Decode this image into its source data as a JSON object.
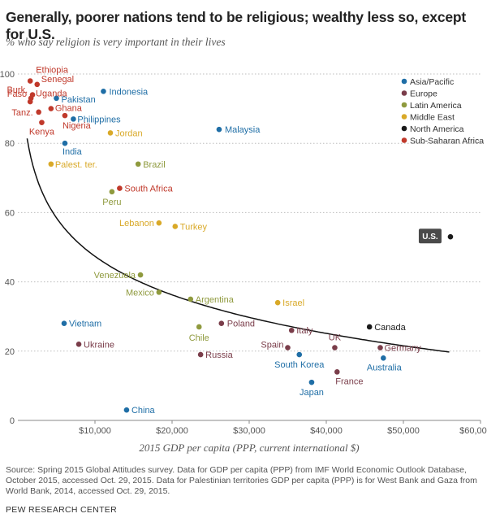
{
  "header": {
    "title": "Generally, poorer nations tend to be religious; wealthy less so, except for U.S.",
    "subtitle": "% who say religion is very important in their lives"
  },
  "footer": {
    "note": "Source: Spring 2015 Global Attitudes survey. Data for GDP per capita (PPP) from IMF World Economic Outlook Database, October 2015, accessed Oct. 29, 2015. Data for Palestinian territories GDP per capita (PPP) is for West Bank and Gaza from World Bank, 2014, accessed Oct. 29, 2015.",
    "brand": "PEW RESEARCH CENTER"
  },
  "chart_data": {
    "type": "scatter",
    "xlabel": "2015 GDP per capita (PPP, current international $)",
    "ylabel": "",
    "xlim": [
      0,
      60000
    ],
    "ylim": [
      0,
      100
    ],
    "x_ticks": [
      10000,
      20000,
      30000,
      40000,
      50000,
      60000
    ],
    "x_tick_labels": [
      "$10,000",
      "$20,000",
      "$30,000",
      "$40,000",
      "$50,000",
      "$60,000"
    ],
    "y_ticks": [
      0,
      20,
      40,
      60,
      80,
      100
    ],
    "y_tick_labels": [
      "0",
      "20",
      "40",
      "60",
      "80",
      "100"
    ],
    "grid": "horizontal dotted",
    "legend_position": "top-right",
    "series": [
      {
        "name": "Asia/Pacific",
        "color": "#1f6ea6",
        "points": [
          {
            "label": "Indonesia",
            "x": 11100,
            "y": 95
          },
          {
            "label": "Pakistan",
            "x": 5000,
            "y": 93
          },
          {
            "label": "Philippines",
            "x": 7200,
            "y": 87
          },
          {
            "label": "India",
            "x": 6100,
            "y": 80
          },
          {
            "label": "Malaysia",
            "x": 26100,
            "y": 84
          },
          {
            "label": "Vietnam",
            "x": 6000,
            "y": 28
          },
          {
            "label": "South Korea",
            "x": 36500,
            "y": 19
          },
          {
            "label": "Australia",
            "x": 47400,
            "y": 18
          },
          {
            "label": "Japan",
            "x": 38100,
            "y": 11
          },
          {
            "label": "China",
            "x": 14100,
            "y": 3
          }
        ]
      },
      {
        "name": "Europe",
        "color": "#7a3d4a",
        "points": [
          {
            "label": "Poland",
            "x": 26400,
            "y": 28
          },
          {
            "label": "Italy",
            "x": 35500,
            "y": 26
          },
          {
            "label": "Spain",
            "x": 35000,
            "y": 21
          },
          {
            "label": "UK",
            "x": 41100,
            "y": 21
          },
          {
            "label": "Germany",
            "x": 47000,
            "y": 21
          },
          {
            "label": "France",
            "x": 41400,
            "y": 14
          },
          {
            "label": "Ukraine",
            "x": 7900,
            "y": 22
          },
          {
            "label": "Russia",
            "x": 23700,
            "y": 19
          }
        ]
      },
      {
        "name": "Latin America",
        "color": "#8f9a3e",
        "points": [
          {
            "label": "Brazil",
            "x": 15600,
            "y": 74
          },
          {
            "label": "Peru",
            "x": 12200,
            "y": 66
          },
          {
            "label": "Venezuela",
            "x": 15900,
            "y": 42
          },
          {
            "label": "Mexico",
            "x": 18300,
            "y": 37
          },
          {
            "label": "Argentina",
            "x": 22400,
            "y": 35
          },
          {
            "label": "Chile",
            "x": 23500,
            "y": 27
          }
        ]
      },
      {
        "name": "Middle East",
        "color": "#d9a928",
        "points": [
          {
            "label": "Jordan",
            "x": 12000,
            "y": 83
          },
          {
            "label": "Palest. ter.",
            "x": 4300,
            "y": 74
          },
          {
            "label": "Lebanon",
            "x": 18300,
            "y": 57
          },
          {
            "label": "Turkey",
            "x": 20400,
            "y": 56
          },
          {
            "label": "Israel",
            "x": 33700,
            "y": 34
          }
        ]
      },
      {
        "name": "North America",
        "color": "#1a1a1a",
        "points": [
          {
            "label": "Canada",
            "x": 45600,
            "y": 27
          },
          {
            "label": "U.S.",
            "x": 56100,
            "y": 53
          }
        ]
      },
      {
        "name": "Sub-Saharan Africa",
        "color": "#c0392b",
        "points": [
          {
            "label": "Ethiopia",
            "x": 1600,
            "y": 98
          },
          {
            "label": "Senegal",
            "x": 2500,
            "y": 97
          },
          {
            "label": "Uganda",
            "x": 1900,
            "y": 94
          },
          {
            "label": "Burk.",
            "x": 1700,
            "y": 93
          },
          {
            "label": "Faso",
            "x": 1600,
            "y": 92
          },
          {
            "label": "Ghana",
            "x": 4300,
            "y": 90
          },
          {
            "label": "Tanz.",
            "x": 2700,
            "y": 89
          },
          {
            "label": "Nigeria",
            "x": 6100,
            "y": 88
          },
          {
            "label": "Kenya",
            "x": 3100,
            "y": 86
          },
          {
            "label": "South Africa",
            "x": 13200,
            "y": 67
          }
        ]
      }
    ],
    "trendline": {
      "type": "logarithmic"
    }
  }
}
